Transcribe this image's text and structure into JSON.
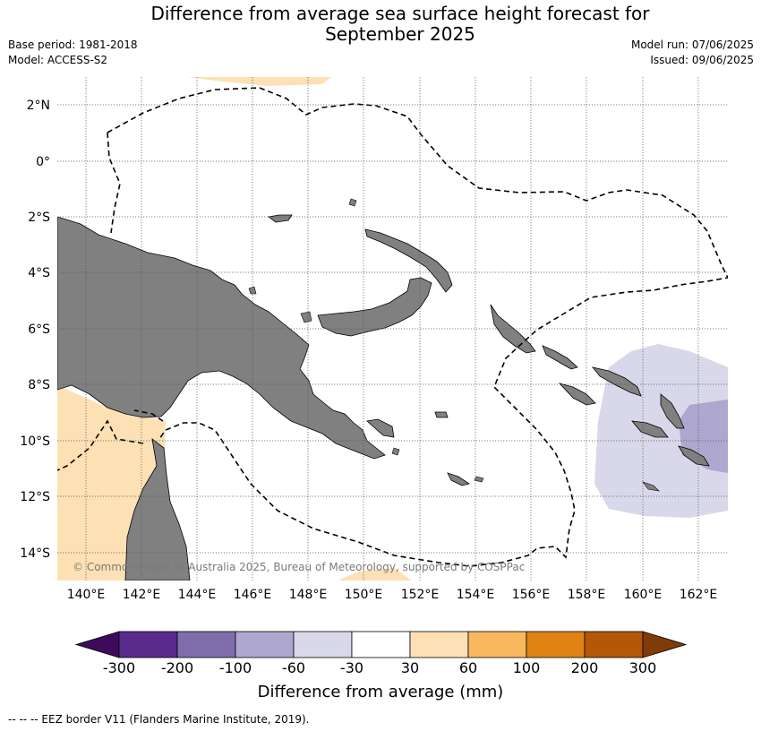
{
  "title_line1": "Difference from average sea surface height forecast for",
  "title_line2": "September 2025",
  "base_period": "Base period: 1981-2018",
  "model": "Model: ACCESS-S2",
  "model_run": "Model run: 07/06/2025",
  "issued": "Issued: 09/06/2025",
  "map": {
    "lon_labels": [
      "140°E",
      "142°E",
      "144°E",
      "146°E",
      "148°E",
      "150°E",
      "152°E",
      "154°E",
      "156°E",
      "158°E",
      "160°E",
      "162°E"
    ],
    "lat_labels": [
      "2°N",
      "0°",
      "2°S",
      "4°S",
      "6°S",
      "8°S",
      "10°S",
      "12°S",
      "14°S"
    ],
    "copyright": "© Commonwealth of Australia 2025, Bureau of Meteorology, supported by COSPPac"
  },
  "colorbar": {
    "ticks": [
      "-300",
      "-200",
      "-100",
      "-60",
      "-30",
      "30",
      "60",
      "100",
      "200",
      "300"
    ],
    "colors": [
      "#3d0a5c",
      "#5a2b8c",
      "#7f6eab",
      "#aea7cf",
      "#d8d8ea",
      "#ffffff",
      "#fde0b4",
      "#f9b75e",
      "#e08214",
      "#b35806",
      "#7f3b08"
    ],
    "label": "Difference from average (mm)"
  },
  "footnote": "--  --  -- EEZ border V11 (Flanders Marine Institute, 2019)."
}
